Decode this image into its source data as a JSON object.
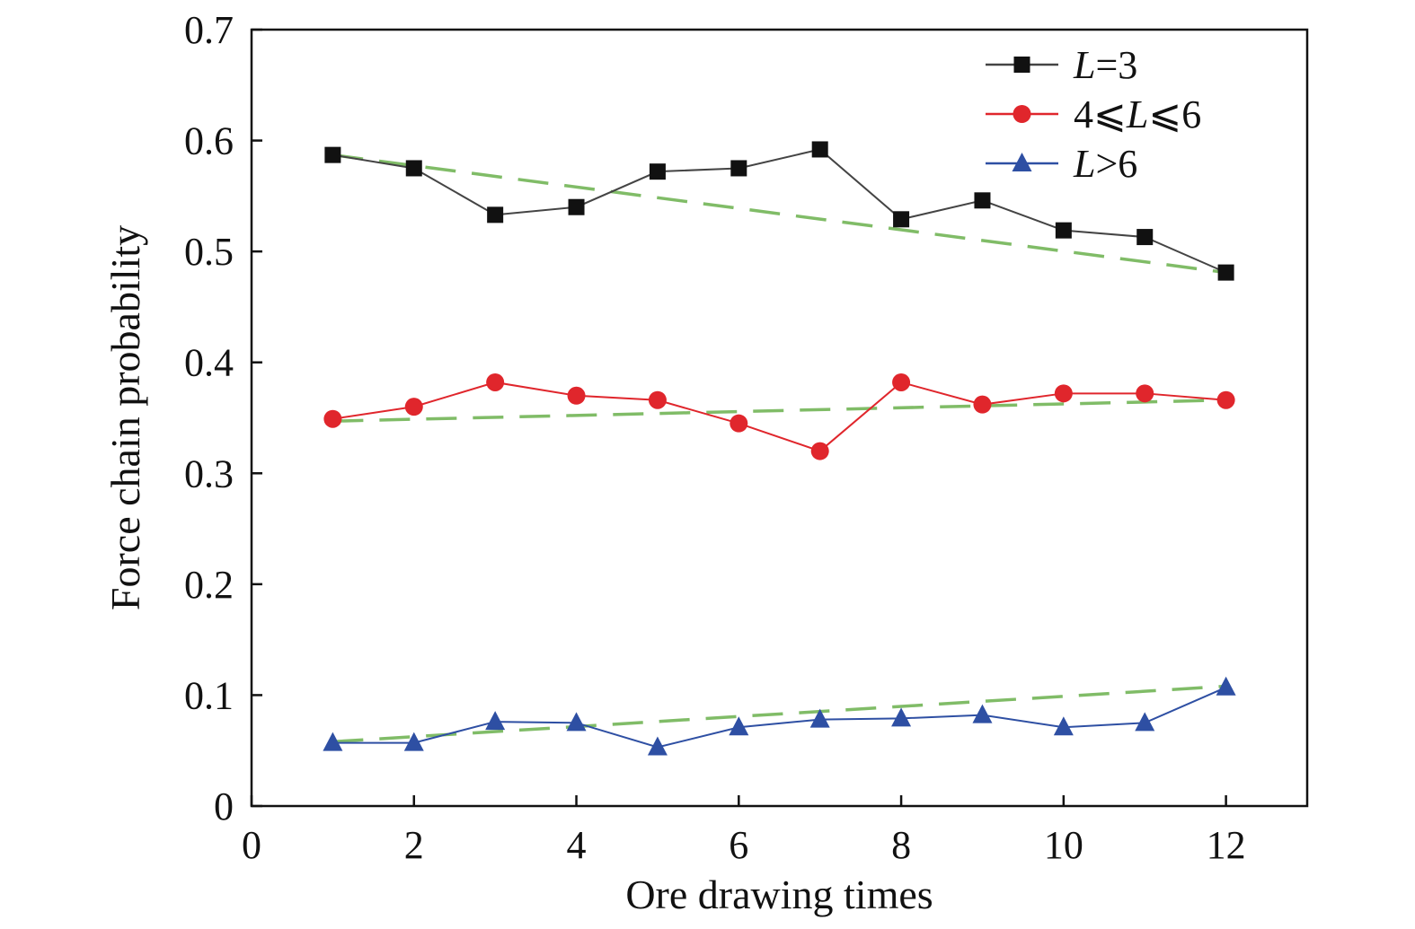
{
  "chart_data": {
    "type": "line",
    "title": "",
    "xlabel": "Ore drawing times",
    "ylabel": "Force chain probability",
    "xlim": [
      0,
      13
    ],
    "ylim": [
      0,
      0.7
    ],
    "xticks": [
      0,
      2,
      4,
      6,
      8,
      10,
      12
    ],
    "xtick_labels": [
      "0",
      "2",
      "4",
      "6",
      "8",
      "10",
      "12"
    ],
    "yticks": [
      0,
      0.1,
      0.2,
      0.3,
      0.4,
      0.5,
      0.6,
      0.7
    ],
    "ytick_labels": [
      "0",
      "0.1",
      "0.2",
      "0.3",
      "0.4",
      "0.5",
      "0.6",
      "0.7"
    ],
    "grid": false,
    "legend_position": "top-right",
    "x": [
      1,
      2,
      3,
      4,
      5,
      6,
      7,
      8,
      9,
      10,
      11,
      12
    ],
    "series": [
      {
        "name": "L=3",
        "name_parts": [
          {
            "text": "L",
            "italic": true
          },
          {
            "text": "=3",
            "italic": false
          }
        ],
        "marker": "square",
        "color": "#111111",
        "line_color": "#444444",
        "values": [
          0.587,
          0.575,
          0.533,
          0.54,
          0.572,
          0.575,
          0.592,
          0.529,
          0.546,
          0.519,
          0.513,
          0.481
        ]
      },
      {
        "name": "4⩽L⩽6",
        "name_parts": [
          {
            "text": "4⩽",
            "italic": false
          },
          {
            "text": "L",
            "italic": true
          },
          {
            "text": "⩽6",
            "italic": false
          }
        ],
        "marker": "circle",
        "color": "#e0262c",
        "line_color": "#e0262c",
        "values": [
          0.349,
          0.36,
          0.382,
          0.37,
          0.366,
          0.345,
          0.32,
          0.382,
          0.362,
          0.372,
          0.372,
          0.366
        ]
      },
      {
        "name": "L>6",
        "name_parts": [
          {
            "text": "L",
            "italic": true
          },
          {
            "text": ">6",
            "italic": false
          }
        ],
        "marker": "triangle",
        "color": "#2e4fa3",
        "line_color": "#2e4fa3",
        "values": [
          0.057,
          0.057,
          0.076,
          0.075,
          0.053,
          0.071,
          0.078,
          0.079,
          0.082,
          0.071,
          0.075,
          0.107
        ]
      }
    ],
    "trendlines": [
      {
        "style": "dashed",
        "color": "#6ab04c",
        "x": [
          1,
          12
        ],
        "y": [
          0.587,
          0.481
        ]
      },
      {
        "style": "dashed",
        "color": "#6ab04c",
        "x": [
          1,
          12
        ],
        "y": [
          0.347,
          0.366
        ]
      },
      {
        "style": "dashed",
        "color": "#6ab04c",
        "x": [
          1,
          12
        ],
        "y": [
          0.058,
          0.108
        ]
      }
    ]
  }
}
